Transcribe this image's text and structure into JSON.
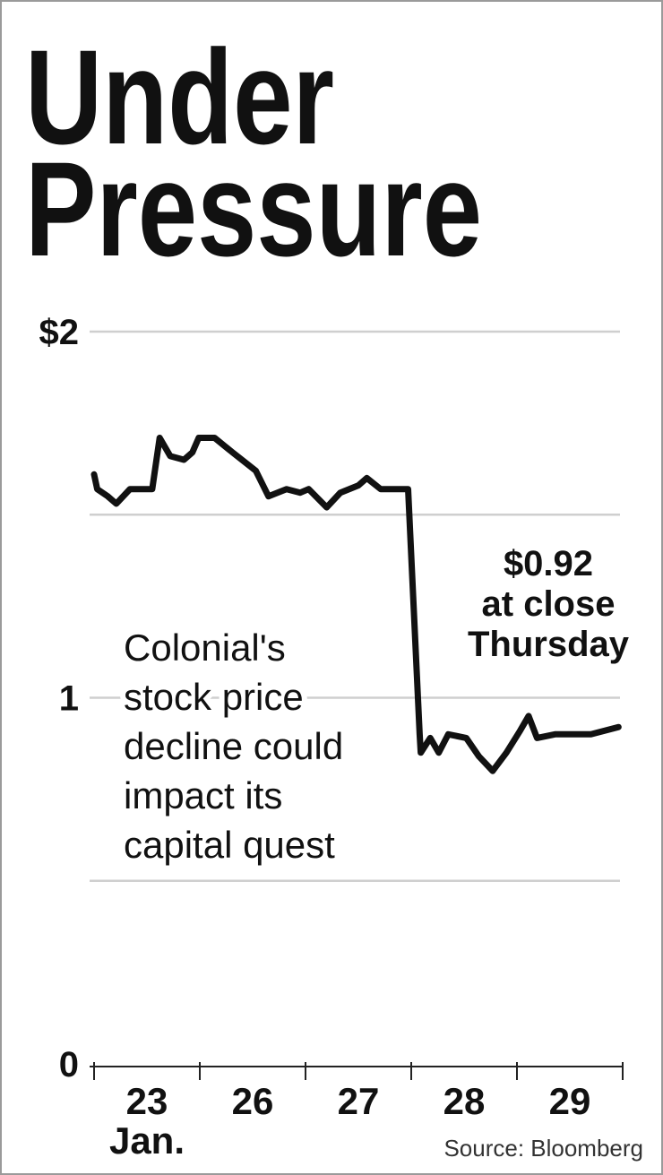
{
  "chart_data": {
    "type": "line",
    "title_lines": [
      "Under",
      "Pressure"
    ],
    "categories": [
      "23",
      "26",
      "27",
      "28",
      "29"
    ],
    "category_note": "Jan.",
    "x": [
      0,
      0.03,
      0.13,
      0.21,
      0.34,
      0.55,
      0.62,
      0.72,
      0.85,
      0.93,
      0.99,
      1.14,
      1.31,
      1.53,
      1.65,
      1.82,
      1.95,
      2.03,
      2.2,
      2.33,
      2.5,
      2.58,
      2.71,
      2.97,
      3.08,
      3.09,
      3.18,
      3.26,
      3.35,
      3.52,
      3.64,
      3.77,
      3.9,
      4.03,
      4.11,
      4.19,
      4.36,
      4.7,
      4.96
    ],
    "series": [
      {
        "color": "#111111",
        "values": [
          1.61,
          1.57,
          1.55,
          1.53,
          1.57,
          1.57,
          1.71,
          1.66,
          1.65,
          1.67,
          1.71,
          1.71,
          1.67,
          1.62,
          1.55,
          1.57,
          1.56,
          1.57,
          1.52,
          1.56,
          1.58,
          1.6,
          1.57,
          1.57,
          0.9,
          0.85,
          0.89,
          0.85,
          0.9,
          0.89,
          0.84,
          0.8,
          0.85,
          0.91,
          0.95,
          0.89,
          0.9,
          0.9,
          0.92
        ]
      }
    ],
    "xlim": [
      0,
      5
    ],
    "ylim": [
      0,
      2
    ],
    "yticks": [
      {
        "value": 2,
        "label": "$2"
      },
      1,
      0
    ],
    "gridlines": [
      0.5,
      1,
      1.5,
      2
    ],
    "grid": true,
    "callout_lines": [
      "$0.92",
      "at close",
      "Thursday"
    ],
    "note_lines": [
      "Colonial's",
      "stock price",
      "decline could",
      "impact its",
      "capital quest"
    ],
    "source": "Source: Bloomberg"
  }
}
